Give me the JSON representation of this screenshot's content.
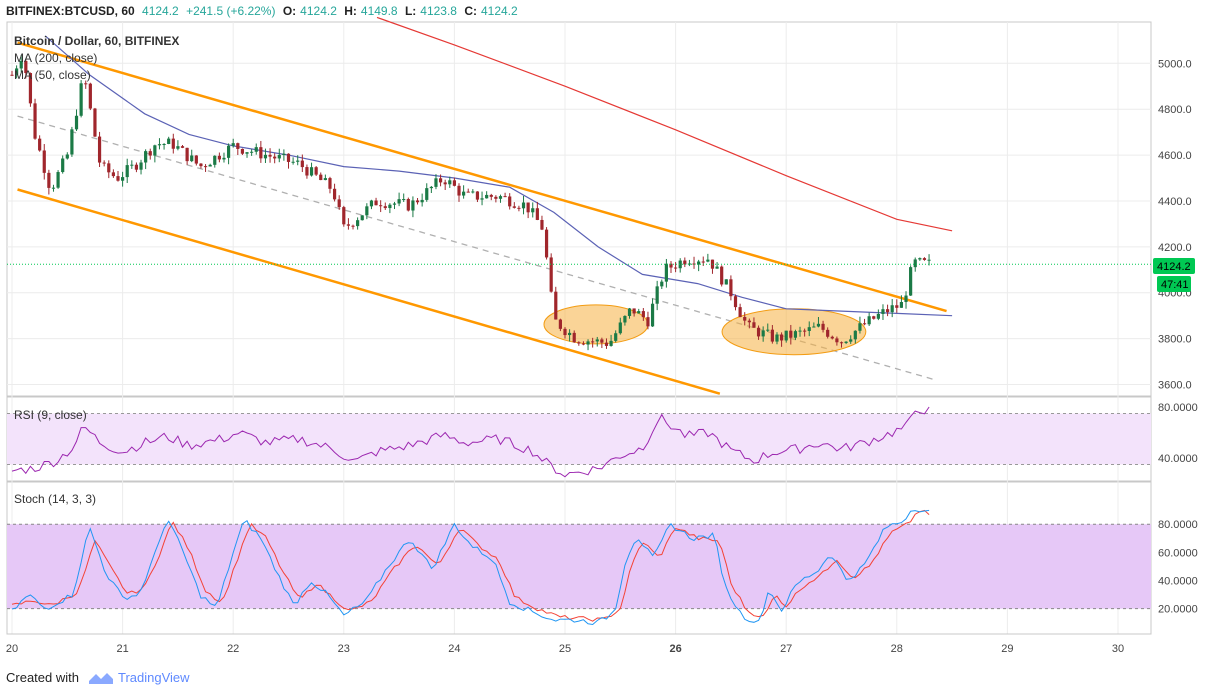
{
  "header": {
    "symbol": "BITFINEX:BTCUSD, 60",
    "last": "4124.2",
    "change": "+241.5 (+6.22%)",
    "o_label": "O:",
    "o_value": "4124.2",
    "h_label": "H:",
    "h_value": "4149.8",
    "l_label": "L:",
    "l_value": "4123.8",
    "c_label": "C:",
    "c_value": "4124.2"
  },
  "legend": {
    "title": "Bitcoin / Dollar, 60, BITFINEX",
    "ma200": "MA (200, close)",
    "ma50": "MA (50, close)",
    "rsi": "RSI (9, close)",
    "stoch": "Stoch (14, 3, 3)"
  },
  "price_badge": "4124.2",
  "countdown_badge": "47:41",
  "colors": {
    "up": "#26a69a",
    "down": "#a0262c",
    "candle_up_body": "#1b7a46",
    "channel": "#ff9800",
    "ma200": "#e53935",
    "ma50": "#5b62b5",
    "rsi_line": "#9c27b0",
    "stoch_k": "#2196f3",
    "stoch_d": "#f44336",
    "rsi_band": "#f3e3fb",
    "stoch_band": "#e6c8f7",
    "ellipse": "#f5b041",
    "last_price_line": "#00c853"
  },
  "chart_data": [
    {
      "type": "candlestick",
      "x_axis": {
        "tick_labels": [
          "20",
          "21",
          "22",
          "23",
          "24",
          "25",
          "26",
          "27",
          "28",
          "29",
          "30"
        ]
      },
      "y_axis": {
        "ylim": [
          3550,
          5180
        ],
        "tick_labels": [
          "5000.0",
          "4800.0",
          "4600.0",
          "4400.0",
          "4200.0",
          "4000.0",
          "3800.0",
          "3600.0"
        ]
      },
      "last_price": 4124.2,
      "anchors": [
        {
          "day": 20.0,
          "price": 4950
        },
        {
          "day": 20.1,
          "price": 5050
        },
        {
          "day": 20.2,
          "price": 4700
        },
        {
          "day": 20.35,
          "price": 4450
        },
        {
          "day": 20.5,
          "price": 4600
        },
        {
          "day": 20.65,
          "price": 4950
        },
        {
          "day": 20.8,
          "price": 4550
        },
        {
          "day": 20.95,
          "price": 4500
        },
        {
          "day": 21.1,
          "price": 4550
        },
        {
          "day": 21.3,
          "price": 4650
        },
        {
          "day": 21.45,
          "price": 4650
        },
        {
          "day": 21.7,
          "price": 4550
        },
        {
          "day": 22.0,
          "price": 4640
        },
        {
          "day": 22.3,
          "price": 4600
        },
        {
          "day": 22.6,
          "price": 4560
        },
        {
          "day": 22.9,
          "price": 4450
        },
        {
          "day": 23.0,
          "price": 4280
        },
        {
          "day": 23.3,
          "price": 4400
        },
        {
          "day": 23.6,
          "price": 4380
        },
        {
          "day": 23.9,
          "price": 4500
        },
        {
          "day": 24.1,
          "price": 4420
        },
        {
          "day": 24.4,
          "price": 4420
        },
        {
          "day": 24.65,
          "price": 4380
        },
        {
          "day": 24.8,
          "price": 4280
        },
        {
          "day": 24.9,
          "price": 3880
        },
        {
          "day": 25.1,
          "price": 3800
        },
        {
          "day": 25.4,
          "price": 3780
        },
        {
          "day": 25.6,
          "price": 3930
        },
        {
          "day": 25.75,
          "price": 3880
        },
        {
          "day": 25.9,
          "price": 4100
        },
        {
          "day": 26.1,
          "price": 4150
        },
        {
          "day": 26.3,
          "price": 4150
        },
        {
          "day": 26.5,
          "price": 4000
        },
        {
          "day": 26.65,
          "price": 3850
        },
        {
          "day": 26.9,
          "price": 3800
        },
        {
          "day": 27.1,
          "price": 3820
        },
        {
          "day": 27.3,
          "price": 3850
        },
        {
          "day": 27.5,
          "price": 3790
        },
        {
          "day": 27.7,
          "price": 3860
        },
        {
          "day": 27.9,
          "price": 3920
        },
        {
          "day": 28.05,
          "price": 3950
        },
        {
          "day": 28.15,
          "price": 4130
        },
        {
          "day": 28.32,
          "price": 4124
        }
      ],
      "ma200_points": [
        {
          "day": 23.3,
          "price": 5200
        },
        {
          "day": 24.0,
          "price": 5080
        },
        {
          "day": 25.0,
          "price": 4900
        },
        {
          "day": 26.0,
          "price": 4710
        },
        {
          "day": 27.0,
          "price": 4510
        },
        {
          "day": 28.0,
          "price": 4320
        },
        {
          "day": 28.5,
          "price": 4270
        }
      ],
      "ma50_points": [
        {
          "day": 20.3,
          "price": 5120
        },
        {
          "day": 20.7,
          "price": 4950
        },
        {
          "day": 21.2,
          "price": 4780
        },
        {
          "day": 21.6,
          "price": 4690
        },
        {
          "day": 22.0,
          "price": 4640
        },
        {
          "day": 22.5,
          "price": 4600
        },
        {
          "day": 23.0,
          "price": 4550
        },
        {
          "day": 23.5,
          "price": 4530
        },
        {
          "day": 24.0,
          "price": 4500
        },
        {
          "day": 24.5,
          "price": 4460
        },
        {
          "day": 24.9,
          "price": 4350
        },
        {
          "day": 25.3,
          "price": 4200
        },
        {
          "day": 25.7,
          "price": 4080
        },
        {
          "day": 26.2,
          "price": 4040
        },
        {
          "day": 26.6,
          "price": 3980
        },
        {
          "day": 27.0,
          "price": 3930
        },
        {
          "day": 27.5,
          "price": 3920
        },
        {
          "day": 28.0,
          "price": 3910
        },
        {
          "day": 28.5,
          "price": 3900
        }
      ],
      "channel_upper": [
        {
          "day": 20.05,
          "price": 5090
        },
        {
          "day": 28.45,
          "price": 3920
        }
      ],
      "channel_lower": [
        {
          "day": 20.05,
          "price": 4450
        },
        {
          "day": 26.4,
          "price": 3560
        }
      ],
      "channel_mid": [
        {
          "day": 20.05,
          "price": 4770
        },
        {
          "day": 28.35,
          "price": 3620
        }
      ],
      "ellipses": [
        {
          "day_center": 25.28,
          "price_center": 3862,
          "day_radius": 0.47,
          "price_radius": 85
        },
        {
          "day_center": 27.07,
          "price_center": 3830,
          "day_radius": 0.65,
          "price_radius": 100
        }
      ]
    },
    {
      "type": "line",
      "name": "RSI (9, close)",
      "y_axis": {
        "ylim": [
          22,
          88
        ],
        "tick_labels": [
          "80.0000",
          "40.0000"
        ],
        "band": [
          35,
          75
        ]
      },
      "anchors": [
        {
          "day": 20.0,
          "v": 30
        },
        {
          "day": 20.2,
          "v": 32
        },
        {
          "day": 20.4,
          "v": 38
        },
        {
          "day": 20.55,
          "v": 48
        },
        {
          "day": 20.65,
          "v": 65
        },
        {
          "day": 20.8,
          "v": 52
        },
        {
          "day": 21.0,
          "v": 45
        },
        {
          "day": 21.2,
          "v": 52
        },
        {
          "day": 21.4,
          "v": 57
        },
        {
          "day": 21.6,
          "v": 50
        },
        {
          "day": 21.9,
          "v": 55
        },
        {
          "day": 22.05,
          "v": 60
        },
        {
          "day": 22.3,
          "v": 52
        },
        {
          "day": 22.6,
          "v": 55
        },
        {
          "day": 22.9,
          "v": 47
        },
        {
          "day": 23.1,
          "v": 37
        },
        {
          "day": 23.3,
          "v": 45
        },
        {
          "day": 23.6,
          "v": 50
        },
        {
          "day": 23.9,
          "v": 58
        },
        {
          "day": 24.1,
          "v": 52
        },
        {
          "day": 24.4,
          "v": 55
        },
        {
          "day": 24.7,
          "v": 46
        },
        {
          "day": 24.85,
          "v": 35
        },
        {
          "day": 25.0,
          "v": 27
        },
        {
          "day": 25.3,
          "v": 32
        },
        {
          "day": 25.5,
          "v": 42
        },
        {
          "day": 25.7,
          "v": 48
        },
        {
          "day": 25.85,
          "v": 72
        },
        {
          "day": 26.1,
          "v": 57
        },
        {
          "day": 26.3,
          "v": 60
        },
        {
          "day": 26.5,
          "v": 46
        },
        {
          "day": 26.7,
          "v": 38
        },
        {
          "day": 26.9,
          "v": 45
        },
        {
          "day": 27.1,
          "v": 47
        },
        {
          "day": 27.3,
          "v": 52
        },
        {
          "day": 27.5,
          "v": 47
        },
        {
          "day": 27.7,
          "v": 52
        },
        {
          "day": 27.9,
          "v": 58
        },
        {
          "day": 28.1,
          "v": 65
        },
        {
          "day": 28.18,
          "v": 80
        },
        {
          "day": 28.32,
          "v": 76
        }
      ]
    },
    {
      "type": "line",
      "name": "Stoch (14, 3, 3)",
      "y_axis": {
        "ylim": [
          2,
          110
        ],
        "tick_labels": [
          "80.0000",
          "60.0000",
          "40.0000",
          "20.0000"
        ],
        "band": [
          20,
          80
        ]
      },
      "series": [
        {
          "name": "%K",
          "anchors": [
            {
              "day": 20.0,
              "v": 18
            },
            {
              "day": 20.15,
              "v": 30
            },
            {
              "day": 20.3,
              "v": 20
            },
            {
              "day": 20.55,
              "v": 30
            },
            {
              "day": 20.7,
              "v": 78
            },
            {
              "day": 20.85,
              "v": 45
            },
            {
              "day": 21.0,
              "v": 28
            },
            {
              "day": 21.15,
              "v": 30
            },
            {
              "day": 21.3,
              "v": 60
            },
            {
              "day": 21.4,
              "v": 85
            },
            {
              "day": 21.55,
              "v": 60
            },
            {
              "day": 21.7,
              "v": 30
            },
            {
              "day": 21.85,
              "v": 20
            },
            {
              "day": 22.0,
              "v": 60
            },
            {
              "day": 22.1,
              "v": 83
            },
            {
              "day": 22.25,
              "v": 70
            },
            {
              "day": 22.4,
              "v": 45
            },
            {
              "day": 22.55,
              "v": 22
            },
            {
              "day": 22.7,
              "v": 40
            },
            {
              "day": 22.85,
              "v": 30
            },
            {
              "day": 23.0,
              "v": 15
            },
            {
              "day": 23.2,
              "v": 25
            },
            {
              "day": 23.4,
              "v": 50
            },
            {
              "day": 23.6,
              "v": 70
            },
            {
              "day": 23.8,
              "v": 48
            },
            {
              "day": 24.0,
              "v": 80
            },
            {
              "day": 24.15,
              "v": 65
            },
            {
              "day": 24.35,
              "v": 55
            },
            {
              "day": 24.5,
              "v": 25
            },
            {
              "day": 24.7,
              "v": 18
            },
            {
              "day": 24.9,
              "v": 12
            },
            {
              "day": 25.1,
              "v": 12
            },
            {
              "day": 25.3,
              "v": 10
            },
            {
              "day": 25.45,
              "v": 18
            },
            {
              "day": 25.55,
              "v": 55
            },
            {
              "day": 25.65,
              "v": 72
            },
            {
              "day": 25.8,
              "v": 55
            },
            {
              "day": 25.95,
              "v": 80
            },
            {
              "day": 26.15,
              "v": 70
            },
            {
              "day": 26.35,
              "v": 72
            },
            {
              "day": 26.45,
              "v": 35
            },
            {
              "day": 26.6,
              "v": 15
            },
            {
              "day": 26.75,
              "v": 10
            },
            {
              "day": 26.85,
              "v": 35
            },
            {
              "day": 26.95,
              "v": 18
            },
            {
              "day": 27.1,
              "v": 38
            },
            {
              "day": 27.3,
              "v": 48
            },
            {
              "day": 27.4,
              "v": 60
            },
            {
              "day": 27.55,
              "v": 40
            },
            {
              "day": 27.7,
              "v": 50
            },
            {
              "day": 27.9,
              "v": 78
            },
            {
              "day": 28.05,
              "v": 82
            },
            {
              "day": 28.15,
              "v": 92
            },
            {
              "day": 28.32,
              "v": 88
            }
          ]
        },
        {
          "name": "%D",
          "anchors": [
            {
              "day": 20.0,
              "v": 22
            },
            {
              "day": 20.2,
              "v": 26
            },
            {
              "day": 20.35,
              "v": 22
            },
            {
              "day": 20.6,
              "v": 32
            },
            {
              "day": 20.75,
              "v": 68
            },
            {
              "day": 20.9,
              "v": 48
            },
            {
              "day": 21.05,
              "v": 30
            },
            {
              "day": 21.2,
              "v": 35
            },
            {
              "day": 21.35,
              "v": 62
            },
            {
              "day": 21.45,
              "v": 82
            },
            {
              "day": 21.6,
              "v": 62
            },
            {
              "day": 21.75,
              "v": 33
            },
            {
              "day": 21.9,
              "v": 24
            },
            {
              "day": 22.05,
              "v": 58
            },
            {
              "day": 22.15,
              "v": 80
            },
            {
              "day": 22.3,
              "v": 70
            },
            {
              "day": 22.45,
              "v": 46
            },
            {
              "day": 22.6,
              "v": 26
            },
            {
              "day": 22.75,
              "v": 38
            },
            {
              "day": 22.9,
              "v": 28
            },
            {
              "day": 23.05,
              "v": 18
            },
            {
              "day": 23.25,
              "v": 25
            },
            {
              "day": 23.45,
              "v": 48
            },
            {
              "day": 23.65,
              "v": 66
            },
            {
              "day": 23.85,
              "v": 50
            },
            {
              "day": 24.05,
              "v": 78
            },
            {
              "day": 24.2,
              "v": 66
            },
            {
              "day": 24.4,
              "v": 55
            },
            {
              "day": 24.55,
              "v": 28
            },
            {
              "day": 24.75,
              "v": 20
            },
            {
              "day": 24.95,
              "v": 14
            },
            {
              "day": 25.15,
              "v": 13
            },
            {
              "day": 25.35,
              "v": 12
            },
            {
              "day": 25.5,
              "v": 20
            },
            {
              "day": 25.6,
              "v": 50
            },
            {
              "day": 25.7,
              "v": 68
            },
            {
              "day": 25.85,
              "v": 56
            },
            {
              "day": 26.0,
              "v": 78
            },
            {
              "day": 26.2,
              "v": 70
            },
            {
              "day": 26.4,
              "v": 68
            },
            {
              "day": 26.5,
              "v": 38
            },
            {
              "day": 26.65,
              "v": 18
            },
            {
              "day": 26.8,
              "v": 14
            },
            {
              "day": 26.9,
              "v": 30
            },
            {
              "day": 27.0,
              "v": 22
            },
            {
              "day": 27.15,
              "v": 36
            },
            {
              "day": 27.35,
              "v": 46
            },
            {
              "day": 27.45,
              "v": 56
            },
            {
              "day": 27.6,
              "v": 42
            },
            {
              "day": 27.75,
              "v": 50
            },
            {
              "day": 27.95,
              "v": 74
            },
            {
              "day": 28.1,
              "v": 80
            },
            {
              "day": 28.2,
              "v": 90
            },
            {
              "day": 28.32,
              "v": 86
            }
          ]
        }
      ]
    }
  ],
  "footer": {
    "created_with": "Created with",
    "brand": "TradingView"
  }
}
